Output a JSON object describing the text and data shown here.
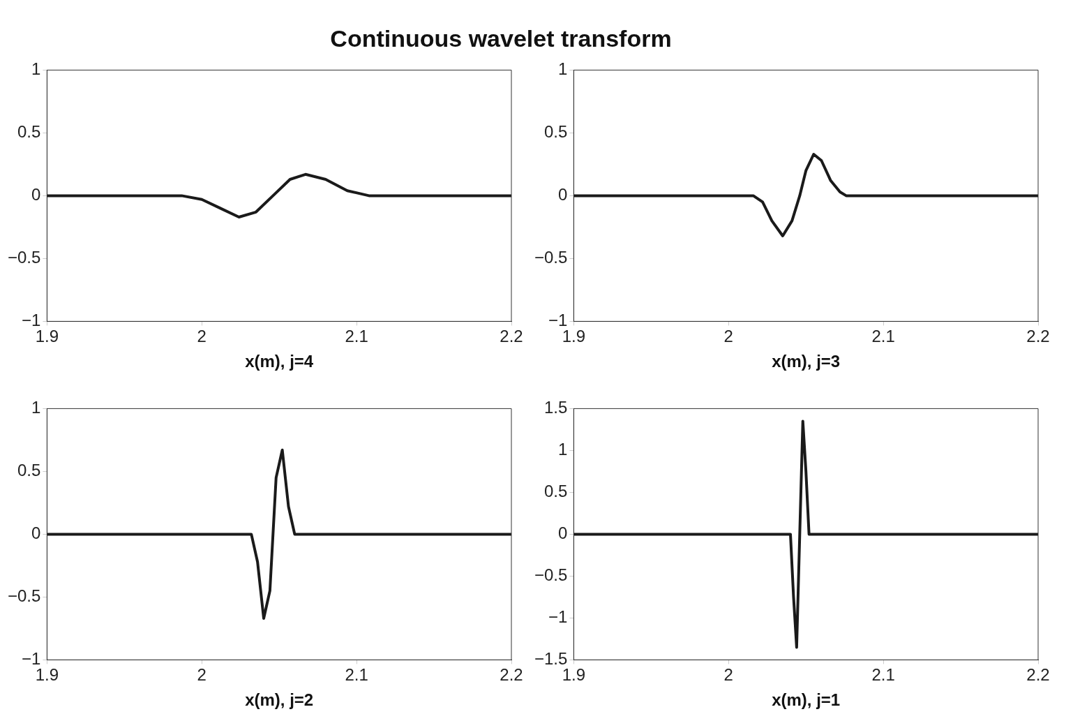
{
  "chart_data": [
    {
      "type": "line",
      "title": "Continuous wavelet transform",
      "xlabel": "x(m), j=4",
      "color": "#1a1a1a",
      "marker": "none",
      "grid": false,
      "legend": false,
      "x": [
        1.9,
        1.987,
        2.0,
        2.012,
        2.024,
        2.035,
        2.046,
        2.057,
        2.067,
        2.08,
        2.094,
        2.108,
        2.2
      ],
      "values": [
        0,
        0,
        -0.03,
        -0.1,
        -0.17,
        -0.13,
        0,
        0.13,
        0.17,
        0.13,
        0.04,
        0,
        0
      ],
      "xlim": [
        1.9,
        2.2
      ],
      "xticks": [
        1.9,
        2,
        2.1,
        2.2
      ],
      "ylim": [
        -1,
        1
      ],
      "yticks": [
        {
          "value": -1,
          "label": "−1"
        },
        {
          "value": -0.5,
          "label": "−0.5"
        },
        0,
        0.5,
        1
      ]
    },
    {
      "type": "line",
      "xlabel": "x(m), j=3",
      "color": "#1a1a1a",
      "marker": "none",
      "grid": false,
      "legend": false,
      "x": [
        1.9,
        2.016,
        2.022,
        2.028,
        2.035,
        2.041,
        2.046,
        2.05,
        2.055,
        2.06,
        2.066,
        2.072,
        2.076,
        2.2
      ],
      "values": [
        0,
        0,
        -0.05,
        -0.2,
        -0.32,
        -0.2,
        0,
        0.2,
        0.33,
        0.28,
        0.12,
        0.03,
        0,
        0
      ],
      "xlim": [
        1.9,
        2.2
      ],
      "xticks": [
        1.9,
        2,
        2.1,
        2.2
      ],
      "ylim": [
        -1,
        1
      ],
      "yticks": [
        {
          "value": -1,
          "label": "−1"
        },
        {
          "value": -0.5,
          "label": "−0.5"
        },
        0,
        0.5,
        1
      ]
    },
    {
      "type": "line",
      "xlabel": "x(m), j=2",
      "color": "#1a1a1a",
      "marker": "none",
      "grid": false,
      "legend": false,
      "x": [
        1.9,
        2.032,
        2.036,
        2.04,
        2.044,
        2.048,
        2.052,
        2.056,
        2.06,
        2.2
      ],
      "values": [
        0,
        0,
        -0.22,
        -0.67,
        -0.45,
        0.45,
        0.67,
        0.22,
        0,
        0
      ],
      "xlim": [
        1.9,
        2.2
      ],
      "xticks": [
        1.9,
        2,
        2.1,
        2.2
      ],
      "ylim": [
        -1,
        1
      ],
      "yticks": [
        {
          "value": -1,
          "label": "−1"
        },
        {
          "value": -0.5,
          "label": "−0.5"
        },
        0,
        0.5,
        1
      ]
    },
    {
      "type": "line",
      "xlabel": "x(m), j=1",
      "color": "#1a1a1a",
      "marker": "none",
      "grid": false,
      "legend": false,
      "x": [
        1.9,
        2.04,
        2.042,
        2.044,
        2.046,
        2.048,
        2.05,
        2.052,
        2.2
      ],
      "values": [
        0,
        0,
        -0.75,
        -1.35,
        0,
        1.35,
        0.75,
        0,
        0
      ],
      "xlim": [
        1.9,
        2.2
      ],
      "xticks": [
        1.9,
        2,
        2.1,
        2.2
      ],
      "ylim": [
        -1.5,
        1.5
      ],
      "yticks": [
        {
          "value": -1.5,
          "label": "−1.5"
        },
        {
          "value": -1,
          "label": "−1"
        },
        {
          "value": -0.5,
          "label": "−0.5"
        },
        0,
        0.5,
        1,
        1.5
      ]
    }
  ]
}
